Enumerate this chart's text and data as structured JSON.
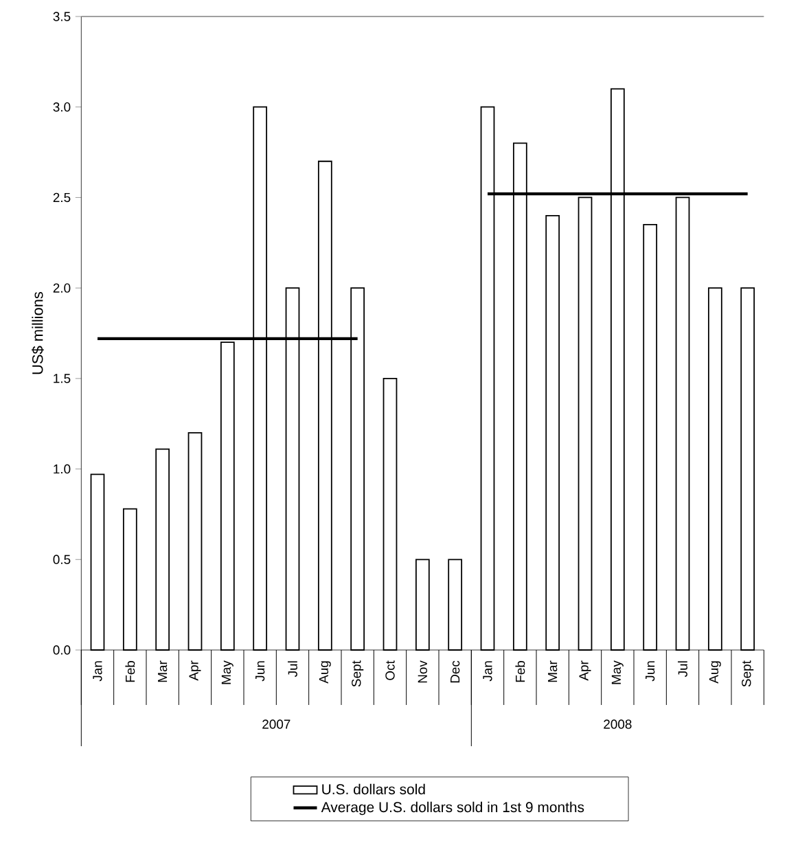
{
  "chart_data": {
    "type": "bar",
    "ylabel": "US$ millions",
    "categories": [
      "Jan",
      "Feb",
      "Mar",
      "Apr",
      "May",
      "Jun",
      "Jul",
      "Aug",
      "Sept",
      "Oct",
      "Nov",
      "Dec",
      "Jan",
      "Feb",
      "Mar",
      "Apr",
      "May",
      "Jun",
      "Jul",
      "Aug",
      "Sept"
    ],
    "series": [
      {
        "name": "U.S. dollars sold",
        "color": "#ffffff",
        "values": [
          0.97,
          0.78,
          1.11,
          1.2,
          1.7,
          3.0,
          2.0,
          2.7,
          2.0,
          1.5,
          0.5,
          0.5,
          3.0,
          2.8,
          2.4,
          2.5,
          3.1,
          2.35,
          2.5,
          2.0,
          2.0
        ]
      },
      {
        "name": "Average U.S. dollars sold in 1st 9 months",
        "type": "line",
        "color": "#000000",
        "values": [
          1.72,
          1.72,
          1.72,
          1.72,
          1.72,
          1.72,
          1.72,
          1.72,
          1.72,
          null,
          null,
          null,
          null,
          null,
          null,
          null,
          null,
          null,
          null,
          null,
          null
        ]
      },
      {
        "type": "line",
        "color": "#000000",
        "values": [
          null,
          null,
          null,
          null,
          null,
          null,
          null,
          null,
          null,
          null,
          null,
          null,
          2.52,
          2.52,
          2.52,
          2.52,
          2.52,
          2.52,
          2.52,
          2.52,
          2.52
        ]
      }
    ],
    "ylim": [
      0,
      3.5
    ],
    "yticks": [
      {
        "value": 0,
        "label": "0.0"
      },
      {
        "value": 0.5,
        "label": "0.5"
      },
      {
        "value": 1,
        "label": "1.0"
      },
      {
        "value": 1.5,
        "label": "1.5"
      },
      {
        "value": 2,
        "label": "2.0"
      },
      {
        "value": 2.5,
        "label": "2.5"
      },
      {
        "value": 3,
        "label": "3.0"
      },
      {
        "value": 3.5,
        "label": "3.5"
      }
    ],
    "legend": "bottom",
    "marker": "none",
    "line_style": "solid",
    "annotations": [
      "2007",
      "2008"
    ]
  }
}
